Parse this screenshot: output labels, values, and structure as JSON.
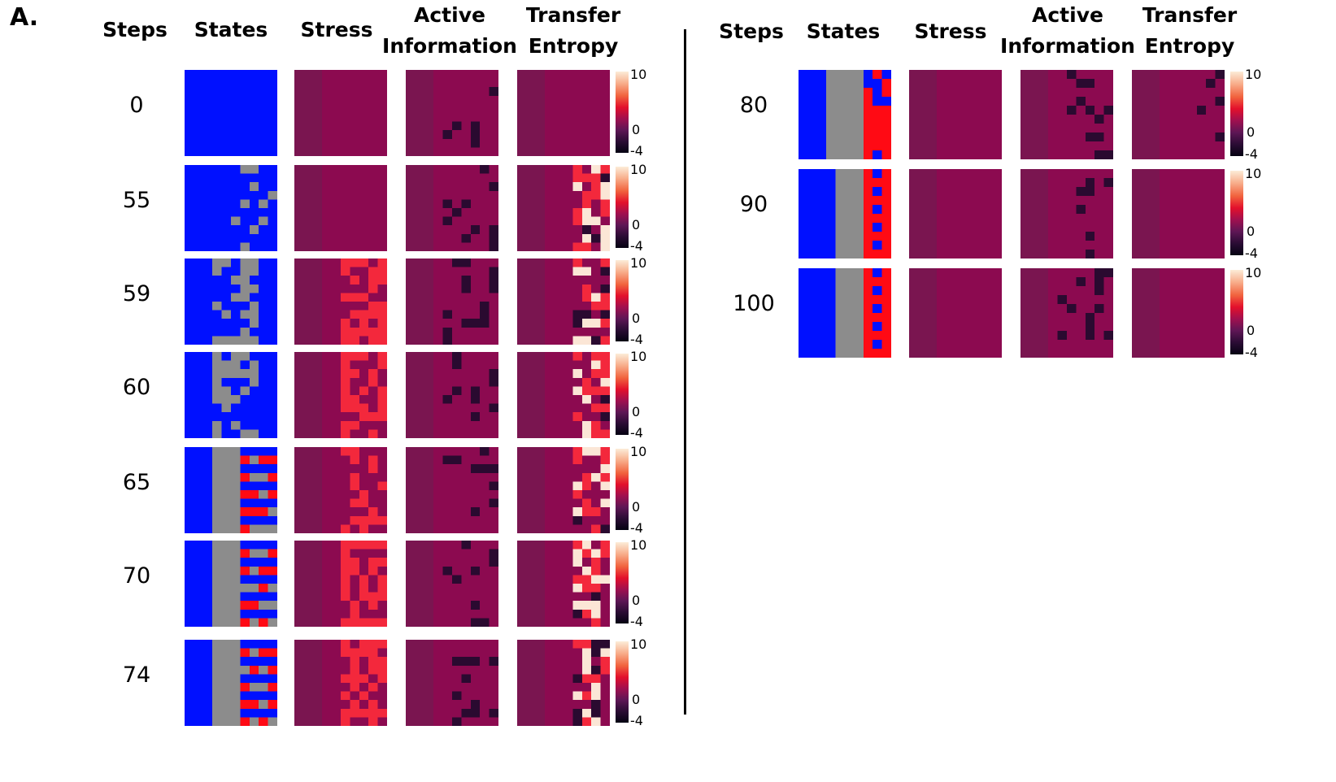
{
  "panel_label": "A.",
  "columns": {
    "steps": "Steps",
    "states": "States",
    "stress": "Stress",
    "active_line1": "Active",
    "active_line2": "Information",
    "te_line1": "Transfer",
    "te_line2": "Entropy"
  },
  "colorbar": {
    "max_label": "10",
    "mid_label": "0",
    "min_label": "-4"
  },
  "left_steps": [
    "0",
    "55",
    "59",
    "60",
    "65",
    "70",
    "74"
  ],
  "right_steps": [
    "80",
    "90",
    "100"
  ],
  "cell_colors": {
    "blue": "#0010ff",
    "gray": "#8c8c8c",
    "red": "#ff0a14",
    "base": "#8c0a50",
    "base_dark": "#7a1550",
    "dark": "#2a0a30",
    "hot": "#f3283c",
    "pale": "#fbe6d6"
  }
}
